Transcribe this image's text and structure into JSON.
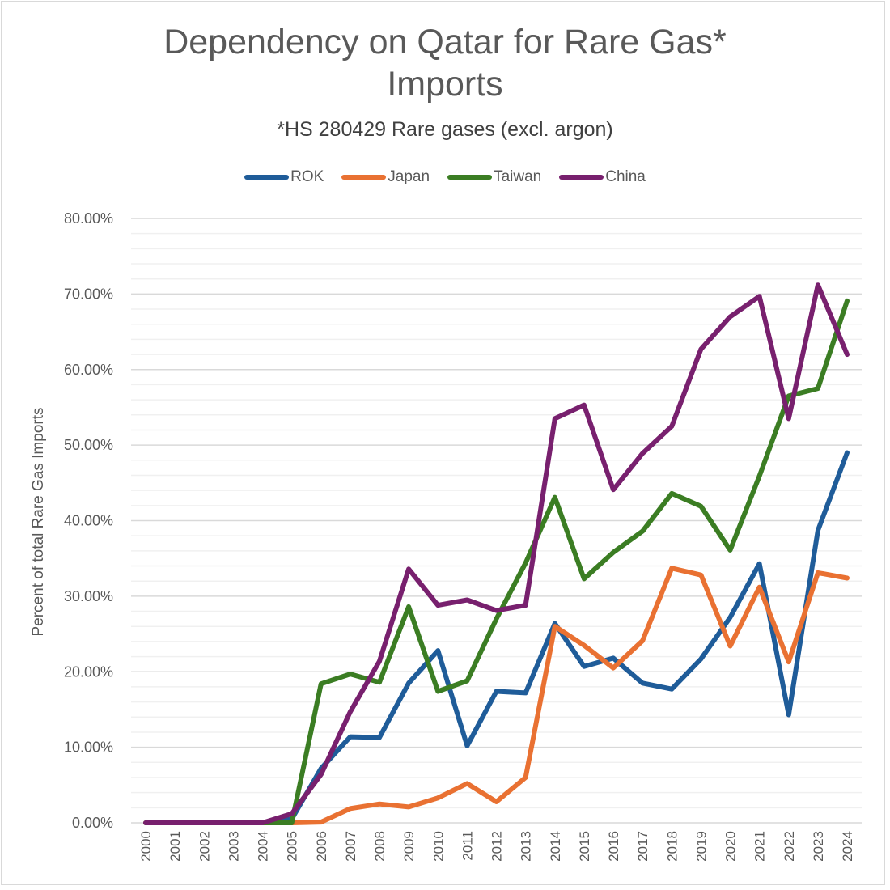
{
  "chart_data": {
    "type": "line",
    "title": "Dependency on Qatar for Rare Gas* Imports",
    "title_lines": [
      "Dependency on Qatar for Rare Gas*",
      "Imports"
    ],
    "subtitle": "*HS 280429 Rare gases (excl. argon)",
    "xlabel": "",
    "ylabel": "Percent of total Rare Gas Imports",
    "ylim": [
      0,
      80
    ],
    "y_major_step": 10,
    "y_minor_step": 2,
    "grid": true,
    "legend_position": "top",
    "yticks": [
      "0.00%",
      "10.00%",
      "20.00%",
      "30.00%",
      "40.00%",
      "50.00%",
      "60.00%",
      "70.00%",
      "80.00%"
    ],
    "x": [
      "2000",
      "2001",
      "2002",
      "2003",
      "2004",
      "2005",
      "2006",
      "2007",
      "2008",
      "2009",
      "2010",
      "2011",
      "2012",
      "2013",
      "2014",
      "2015",
      "2016",
      "2017",
      "2018",
      "2019",
      "2020",
      "2021",
      "2022",
      "2023",
      "2024"
    ],
    "series": [
      {
        "name": "ROK",
        "color": "#1F5C99",
        "values": [
          0,
          0,
          0,
          0,
          0,
          0.5,
          7.2,
          11.4,
          11.3,
          18.5,
          22.8,
          10.2,
          17.4,
          17.2,
          26.4,
          20.7,
          21.8,
          18.5,
          17.7,
          21.7,
          27.2,
          34.3,
          14.3,
          38.7,
          49.0
        ]
      },
      {
        "name": "Japan",
        "color": "#E97132",
        "values": [
          0,
          0,
          0,
          0,
          0,
          0,
          0.1,
          1.9,
          2.5,
          2.1,
          3.3,
          5.2,
          2.8,
          6.0,
          26.0,
          23.5,
          20.5,
          24.1,
          33.7,
          32.8,
          23.4,
          31.2,
          21.3,
          33.1,
          32.4
        ]
      },
      {
        "name": "Taiwan",
        "color": "#3B7D23",
        "values": [
          0,
          0,
          0,
          0,
          0,
          0,
          18.4,
          19.7,
          18.6,
          28.6,
          17.4,
          18.8,
          27.0,
          34.4,
          43.1,
          32.3,
          35.8,
          38.6,
          43.6,
          41.9,
          36.1,
          45.9,
          56.5,
          57.5,
          69.1
        ]
      },
      {
        "name": "China",
        "color": "#78206E",
        "values": [
          0,
          0,
          0,
          0,
          0,
          1.2,
          6.4,
          14.7,
          21.4,
          33.6,
          28.8,
          29.5,
          28.1,
          28.8,
          53.5,
          55.3,
          44.1,
          48.9,
          52.5,
          62.7,
          67.0,
          69.7,
          53.5,
          71.2,
          62.0
        ]
      }
    ]
  }
}
